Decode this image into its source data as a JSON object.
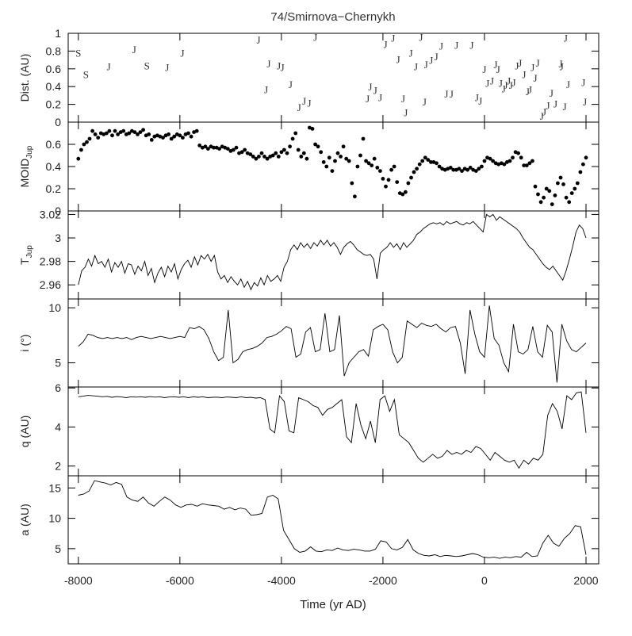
{
  "chart_data": {
    "type": "line",
    "title": "74/Smirnova−Chernykh",
    "xlabel": "Time (yr AD)",
    "xlim": [
      -8200,
      2250
    ],
    "xticks": [
      -8000,
      -6000,
      -4000,
      -2000,
      0,
      2000
    ],
    "xtick_labels": [
      "-8000",
      "-6000",
      "-4000",
      "-2000",
      "0",
      "2000"
    ],
    "panels": [
      {
        "id": "dist",
        "type": "scatter",
        "ylabel": "Dist. (AU)",
        "ylim": [
          0,
          1
        ],
        "yticks": [
          0,
          0.2,
          0.4,
          0.6,
          0.8,
          1
        ],
        "ytick_labels": [
          "0",
          "0.2",
          "0.4",
          "0.6",
          "0.8",
          "1"
        ],
        "markers": [
          {
            "x": -8000,
            "y": 0.78,
            "label": "S"
          },
          {
            "x": -7850,
            "y": 0.54,
            "label": "S"
          },
          {
            "x": -7400,
            "y": 0.63,
            "label": "J"
          },
          {
            "x": -6900,
            "y": 0.82,
            "label": "J"
          },
          {
            "x": -6650,
            "y": 0.64,
            "label": "S"
          },
          {
            "x": -6250,
            "y": 0.62,
            "label": "J"
          },
          {
            "x": -5950,
            "y": 0.78,
            "label": "J"
          },
          {
            "x": -4450,
            "y": 0.93,
            "label": "J"
          },
          {
            "x": -4300,
            "y": 0.37,
            "label": "J"
          },
          {
            "x": -4250,
            "y": 0.66,
            "label": "J"
          },
          {
            "x": -4050,
            "y": 0.64,
            "label": "J"
          },
          {
            "x": -3980,
            "y": 0.62,
            "label": "J"
          },
          {
            "x": -3820,
            "y": 0.43,
            "label": "J"
          },
          {
            "x": -3650,
            "y": 0.17,
            "label": "J"
          },
          {
            "x": -3550,
            "y": 0.24,
            "label": "J"
          },
          {
            "x": -3450,
            "y": 0.22,
            "label": "J"
          },
          {
            "x": -3330,
            "y": 0.96,
            "label": "J"
          },
          {
            "x": -2300,
            "y": 0.27,
            "label": "J"
          },
          {
            "x": -2250,
            "y": 0.4,
            "label": "J"
          },
          {
            "x": -2150,
            "y": 0.36,
            "label": "J"
          },
          {
            "x": -2050,
            "y": 0.28,
            "label": "J"
          },
          {
            "x": -1950,
            "y": 0.88,
            "label": "J"
          },
          {
            "x": -1800,
            "y": 0.95,
            "label": "J"
          },
          {
            "x": -1700,
            "y": 0.71,
            "label": "J"
          },
          {
            "x": -1600,
            "y": 0.27,
            "label": "J"
          },
          {
            "x": -1550,
            "y": 0.11,
            "label": "J"
          },
          {
            "x": -1450,
            "y": 0.78,
            "label": "J"
          },
          {
            "x": -1350,
            "y": 0.63,
            "label": "J"
          },
          {
            "x": -1250,
            "y": 0.96,
            "label": "J"
          },
          {
            "x": -1180,
            "y": 0.23,
            "label": "J"
          },
          {
            "x": -1150,
            "y": 0.65,
            "label": "J"
          },
          {
            "x": -1050,
            "y": 0.7,
            "label": "J"
          },
          {
            "x": -950,
            "y": 0.74,
            "label": "J"
          },
          {
            "x": -850,
            "y": 0.86,
            "label": "J"
          },
          {
            "x": -750,
            "y": 0.32,
            "label": "J"
          },
          {
            "x": -650,
            "y": 0.32,
            "label": "J"
          },
          {
            "x": -550,
            "y": 0.87,
            "label": "J"
          },
          {
            "x": -250,
            "y": 0.87,
            "label": "J"
          },
          {
            "x": -150,
            "y": 0.28,
            "label": "J"
          },
          {
            "x": -80,
            "y": 0.24,
            "label": "J"
          },
          {
            "x": 0,
            "y": 0.6,
            "label": "J"
          },
          {
            "x": 60,
            "y": 0.44,
            "label": "J"
          },
          {
            "x": 150,
            "y": 0.47,
            "label": "J"
          },
          {
            "x": 220,
            "y": 0.65,
            "label": "J"
          },
          {
            "x": 270,
            "y": 0.6,
            "label": "J"
          },
          {
            "x": 320,
            "y": 0.44,
            "label": "J"
          },
          {
            "x": 380,
            "y": 0.38,
            "label": "J"
          },
          {
            "x": 420,
            "y": 0.42,
            "label": "J"
          },
          {
            "x": 480,
            "y": 0.47,
            "label": "J"
          },
          {
            "x": 520,
            "y": 0.42,
            "label": "J"
          },
          {
            "x": 580,
            "y": 0.45,
            "label": "J"
          },
          {
            "x": 640,
            "y": 0.64,
            "label": "J"
          },
          {
            "x": 700,
            "y": 0.67,
            "label": "J"
          },
          {
            "x": 780,
            "y": 0.54,
            "label": "J"
          },
          {
            "x": 850,
            "y": 0.35,
            "label": "J"
          },
          {
            "x": 900,
            "y": 0.37,
            "label": "J"
          },
          {
            "x": 950,
            "y": 0.62,
            "label": "J"
          },
          {
            "x": 1000,
            "y": 0.5,
            "label": "J"
          },
          {
            "x": 1050,
            "y": 0.67,
            "label": "J"
          },
          {
            "x": 1130,
            "y": 0.07,
            "label": "J"
          },
          {
            "x": 1180,
            "y": 0.12,
            "label": "J"
          },
          {
            "x": 1250,
            "y": 0.19,
            "label": "J"
          },
          {
            "x": 1320,
            "y": 0.33,
            "label": "J"
          },
          {
            "x": 1400,
            "y": 0.21,
            "label": "J"
          },
          {
            "x": 1500,
            "y": 0.66,
            "label": "J"
          },
          {
            "x": 1520,
            "y": 0.63,
            "label": "J"
          },
          {
            "x": 1580,
            "y": 0.18,
            "label": "J"
          },
          {
            "x": 1600,
            "y": 0.95,
            "label": "J"
          },
          {
            "x": 1650,
            "y": 0.43,
            "label": "J"
          },
          {
            "x": 1950,
            "y": 0.45,
            "label": "J"
          },
          {
            "x": 1980,
            "y": 0.23,
            "label": "J"
          }
        ]
      },
      {
        "id": "moid",
        "type": "scatter",
        "ylabel": "MOID",
        "ylabel_sub": "Jup",
        "ylim": [
          0,
          0.8
        ],
        "yticks": [
          0,
          0.2,
          0.4,
          0.6
        ],
        "ytick_labels": [
          "0",
          "0.2",
          "0.4",
          "0.6"
        ],
        "y": [
          0.47,
          0.55,
          0.6,
          0.62,
          0.65,
          0.72,
          0.69,
          0.66,
          0.7,
          0.69,
          0.7,
          0.72,
          0.68,
          0.72,
          0.69,
          0.71,
          0.72,
          0.69,
          0.7,
          0.72,
          0.71,
          0.69,
          0.71,
          0.73,
          0.68,
          0.69,
          0.64,
          0.67,
          0.68,
          0.67,
          0.66,
          0.68,
          0.69,
          0.65,
          0.67,
          0.69,
          0.68,
          0.66,
          0.69,
          0.7,
          0.67,
          0.71,
          0.72,
          0.59,
          0.57,
          0.58,
          0.56,
          0.58,
          0.57,
          0.57,
          0.56,
          0.58,
          0.57,
          0.56,
          0.54,
          0.55,
          0.57,
          0.52,
          0.53,
          0.55,
          0.52,
          0.51,
          0.49,
          0.47,
          0.49,
          0.52,
          0.49,
          0.47,
          0.49,
          0.5,
          0.52,
          0.49,
          0.53,
          0.55,
          0.52,
          0.58,
          0.65,
          0.7,
          0.55,
          0.49,
          0.52,
          0.47,
          0.75,
          0.74,
          0.6,
          0.58,
          0.53,
          0.44,
          0.4,
          0.48,
          0.36,
          0.45,
          0.52,
          0.49,
          0.58,
          0.47,
          0.45,
          0.25,
          0.13,
          0.4,
          0.5,
          0.65,
          0.45,
          0.43,
          0.41,
          0.47,
          0.39,
          0.36,
          0.29,
          0.22,
          0.28,
          0.37,
          0.4,
          0.26,
          0.16,
          0.15,
          0.17,
          0.25,
          0.3,
          0.35,
          0.38,
          0.42,
          0.45,
          0.48,
          0.46,
          0.44,
          0.44,
          0.43,
          0.4,
          0.38,
          0.37,
          0.38,
          0.39,
          0.37,
          0.37,
          0.38,
          0.36,
          0.38,
          0.37,
          0.39,
          0.37,
          0.36,
          0.38,
          0.4,
          0.45,
          0.48,
          0.47,
          0.45,
          0.43,
          0.42,
          0.43,
          0.42,
          0.44,
          0.45,
          0.48,
          0.53,
          0.52,
          0.48,
          0.41,
          0.41,
          0.43,
          0.45,
          0.22,
          0.15,
          0.08,
          0.12,
          0.2,
          0.18,
          0.06,
          0.14,
          0.25,
          0.3,
          0.24,
          0.12,
          0.08,
          0.16,
          0.2,
          0.25,
          0.35,
          0.42,
          0.48
        ]
      },
      {
        "id": "tjup",
        "type": "line",
        "ylabel": "T",
        "ylabel_sub": "Jup",
        "ylim": [
          2.948,
          3.023
        ],
        "yticks": [
          2.96,
          2.98,
          3,
          3.02
        ],
        "ytick_labels": [
          "2.96",
          "2.98",
          "3",
          "3.02"
        ],
        "y": [
          2.96,
          2.972,
          2.975,
          2.982,
          2.976,
          2.985,
          2.978,
          2.98,
          2.975,
          2.982,
          2.971,
          2.979,
          2.975,
          2.98,
          2.97,
          2.978,
          2.977,
          2.969,
          2.976,
          2.972,
          2.98,
          2.968,
          2.974,
          2.962,
          2.97,
          2.975,
          2.967,
          2.976,
          2.971,
          2.978,
          2.965,
          2.973,
          2.978,
          2.981,
          2.975,
          2.984,
          2.977,
          2.985,
          2.982,
          2.986,
          2.98,
          2.985,
          2.971,
          2.965,
          2.968,
          2.962,
          2.967,
          2.963,
          2.96,
          2.965,
          2.958,
          2.963,
          2.956,
          2.962,
          2.959,
          2.966,
          2.96,
          2.968,
          2.963,
          2.965,
          2.968,
          2.963,
          2.975,
          2.98,
          2.99,
          2.994,
          2.99,
          2.996,
          2.992,
          2.995,
          2.991,
          2.996,
          2.993,
          2.998,
          2.994,
          2.998,
          2.993,
          2.996,
          2.992,
          2.986,
          2.992,
          2.995,
          2.997,
          2.994,
          2.99,
          2.988,
          2.986,
          2.985,
          2.986,
          2.982,
          2.965,
          2.987,
          2.99,
          2.992,
          2.996,
          2.992,
          2.995,
          2.99,
          2.996,
          2.992,
          2.995,
          2.998,
          3.003,
          3.005,
          3.008,
          3.01,
          3.012,
          3.013,
          3.012,
          3.013,
          3.011,
          3.014,
          3.012,
          3.013,
          3.014,
          3.012,
          3.011,
          3.013,
          3.012,
          3.014,
          3.011,
          3.008,
          3.005,
          3.02,
          3.018,
          3.02,
          3.015,
          3.018,
          3.016,
          3.014,
          3.012,
          3.01,
          3.008,
          3.005,
          3.0,
          2.996,
          2.992,
          2.99,
          2.986,
          2.982,
          2.978,
          2.975,
          2.973,
          2.976,
          2.972,
          2.968,
          2.964,
          2.972,
          2.982,
          2.993,
          3.005,
          3.011,
          3.008,
          3.0
        ]
      },
      {
        "id": "incl",
        "type": "line",
        "ylabel": "i (°)",
        "ylim": [
          2.8,
          10.8
        ],
        "yticks": [
          5,
          10
        ],
        "ytick_labels": [
          "5",
          "10"
        ],
        "y": [
          6.5,
          6.9,
          7.6,
          7.5,
          7.3,
          7.2,
          7.3,
          7.2,
          7.3,
          7.2,
          7.3,
          7.1,
          7.3,
          7.4,
          7.3,
          7.2,
          7.3,
          7.4,
          7.3,
          7.2,
          7.3,
          7.4,
          7.3,
          8.2,
          8.1,
          8.3,
          8.0,
          7.2,
          6.0,
          5.2,
          5.5,
          9.8,
          5.0,
          5.3,
          6.0,
          6.2,
          6.3,
          6.5,
          6.8,
          7.3,
          7.4,
          7.6,
          7.9,
          8.3,
          8.1,
          5.5,
          5.8,
          7.8,
          8.2,
          6.0,
          6.2,
          9.5,
          6.0,
          6.2,
          9.3,
          3.8,
          5.0,
          5.5,
          6.0,
          6.2,
          5.6,
          8.0,
          8.3,
          8.5,
          8.0,
          6.0,
          5.0,
          5.5,
          8.8,
          8.5,
          8.2,
          8.6,
          8.4,
          8.3,
          8.5,
          8.1,
          7.8,
          8.2,
          8.3,
          6.8,
          4.0,
          9.8,
          7.6,
          6.0,
          5.5,
          10.2,
          7.2,
          6.6,
          5.0,
          4.2,
          8.5,
          6.0,
          5.8,
          6.2,
          8.3,
          6.0,
          5.5,
          8.4,
          7.8,
          3.2,
          8.5,
          7.0,
          6.2,
          6.0,
          6.4,
          6.8
        ]
      },
      {
        "id": "q",
        "type": "line",
        "ylabel": "q (AU)",
        "ylim": [
          1.5,
          6.05
        ],
        "yticks": [
          2,
          4,
          6
        ],
        "ytick_labels": [
          "2",
          "4",
          "6"
        ],
        "y": [
          5.55,
          5.58,
          5.62,
          5.6,
          5.58,
          5.55,
          5.57,
          5.52,
          5.56,
          5.54,
          5.5,
          5.55,
          5.53,
          5.55,
          5.52,
          5.56,
          5.53,
          5.55,
          5.5,
          5.54,
          5.55,
          5.52,
          5.55,
          5.5,
          5.55,
          5.52,
          5.55,
          5.5,
          5.52,
          5.53,
          5.5,
          5.54,
          5.52,
          5.5,
          5.55,
          5.5,
          5.52,
          5.48,
          5.5,
          5.4,
          3.9,
          3.7,
          5.6,
          5.3,
          3.8,
          3.7,
          5.5,
          5.4,
          5.3,
          5.1,
          5.0,
          4.6,
          4.9,
          5.0,
          5.2,
          5.4,
          3.5,
          3.2,
          5.2,
          4.1,
          3.4,
          4.3,
          3.2,
          5.4,
          5.6,
          4.8,
          5.4,
          3.6,
          3.4,
          3.2,
          2.8,
          2.4,
          2.2,
          2.4,
          2.6,
          2.4,
          2.5,
          2.8,
          2.6,
          2.7,
          2.6,
          2.8,
          2.7,
          3.0,
          2.9,
          2.6,
          2.3,
          2.7,
          2.5,
          2.3,
          2.2,
          2.3,
          1.9,
          2.3,
          2.1,
          2.4,
          2.3,
          2.6,
          4.6,
          5.2,
          4.8,
          3.9,
          5.6,
          5.4,
          5.75,
          5.8,
          3.7
        ]
      },
      {
        "id": "a",
        "type": "line",
        "ylabel": "a (AU)",
        "ylim": [
          2.5,
          17
        ],
        "yticks": [
          5,
          10,
          15
        ],
        "ytick_labels": [
          "5",
          "10",
          "15"
        ],
        "y": [
          13.8,
          14.0,
          14.5,
          16.2,
          16.0,
          15.8,
          15.5,
          15.9,
          15.6,
          13.5,
          13.0,
          12.8,
          13.5,
          12.5,
          12.0,
          12.8,
          13.5,
          13.0,
          12.2,
          11.8,
          12.2,
          12.3,
          12.0,
          12.4,
          12.2,
          12.1,
          12.0,
          11.5,
          11.8,
          11.4,
          11.7,
          11.5,
          10.5,
          10.6,
          10.8,
          13.5,
          13.8,
          13.2,
          8.0,
          6.5,
          5.0,
          4.4,
          4.6,
          5.3,
          4.6,
          4.5,
          4.8,
          4.7,
          5.1,
          4.8,
          4.7,
          4.9,
          4.8,
          4.6,
          4.6,
          4.9,
          6.3,
          6.1,
          5.0,
          4.8,
          5.2,
          6.5,
          4.8,
          4.2,
          3.9,
          3.8,
          4.0,
          3.7,
          3.9,
          3.8,
          3.7,
          3.8,
          4.0,
          4.2,
          4.0,
          3.6,
          3.5,
          3.6,
          3.4,
          3.6,
          3.5,
          3.7,
          3.6,
          4.4,
          3.7,
          3.8,
          5.9,
          7.2,
          5.9,
          5.4,
          6.7,
          7.5,
          8.8,
          8.6,
          4.0
        ]
      }
    ]
  }
}
